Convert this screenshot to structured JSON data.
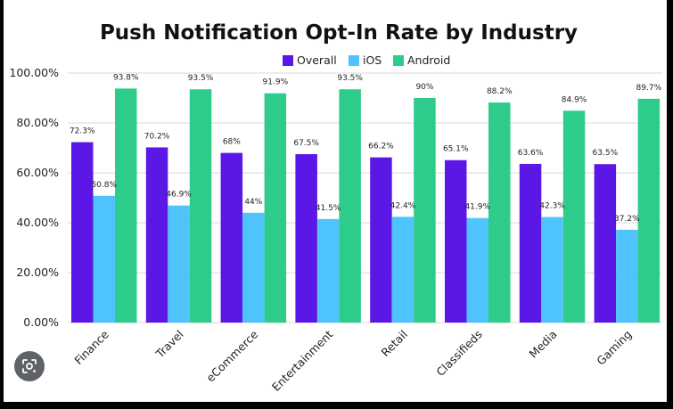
{
  "chart_data": {
    "type": "bar",
    "title": "Push Notification Opt-In Rate by Industry",
    "xlabel": "",
    "ylabel": "",
    "categories": [
      "Finance",
      "Travel",
      "eCommerce",
      "Entertainment",
      "Retail",
      "Classifieds",
      "Media",
      "Gaming"
    ],
    "series": [
      {
        "name": "Overall",
        "color": "#5b17e6",
        "values": [
          72.3,
          70.2,
          68,
          67.5,
          66.2,
          65.1,
          63.6,
          63.5
        ],
        "labels": [
          "72.3%",
          "70.2%",
          "68%",
          "67.5%",
          "66.2%",
          "65.1%",
          "63.6%",
          "63.5%"
        ]
      },
      {
        "name": "iOS",
        "color": "#4fc3fb",
        "values": [
          50.8,
          46.9,
          44,
          41.5,
          42.4,
          41.9,
          42.3,
          37.2
        ],
        "labels": [
          "50.8%",
          "46.9%",
          "44%",
          "41.5%",
          "42.4%",
          "41.9%",
          "42.3%",
          "37.2%"
        ]
      },
      {
        "name": "Android",
        "color": "#2ecc8a",
        "values": [
          93.8,
          93.5,
          91.9,
          93.5,
          90,
          88.2,
          84.9,
          89.7
        ],
        "labels": [
          "93.8%",
          "93.5%",
          "91.9%",
          "93.5%",
          "90%",
          "88.2%",
          "84.9%",
          "89.7%"
        ]
      }
    ],
    "ylim": [
      0,
      100
    ],
    "yticks": [
      "0.00%",
      "20.00%",
      "40.00%",
      "60.00%",
      "80.00%",
      "100.00%"
    ],
    "ytick_values": [
      0,
      20,
      40,
      60,
      80,
      100
    ],
    "grid": true,
    "legend": "top-center"
  },
  "overlay": {
    "lens_icon": "google-lens-icon"
  }
}
